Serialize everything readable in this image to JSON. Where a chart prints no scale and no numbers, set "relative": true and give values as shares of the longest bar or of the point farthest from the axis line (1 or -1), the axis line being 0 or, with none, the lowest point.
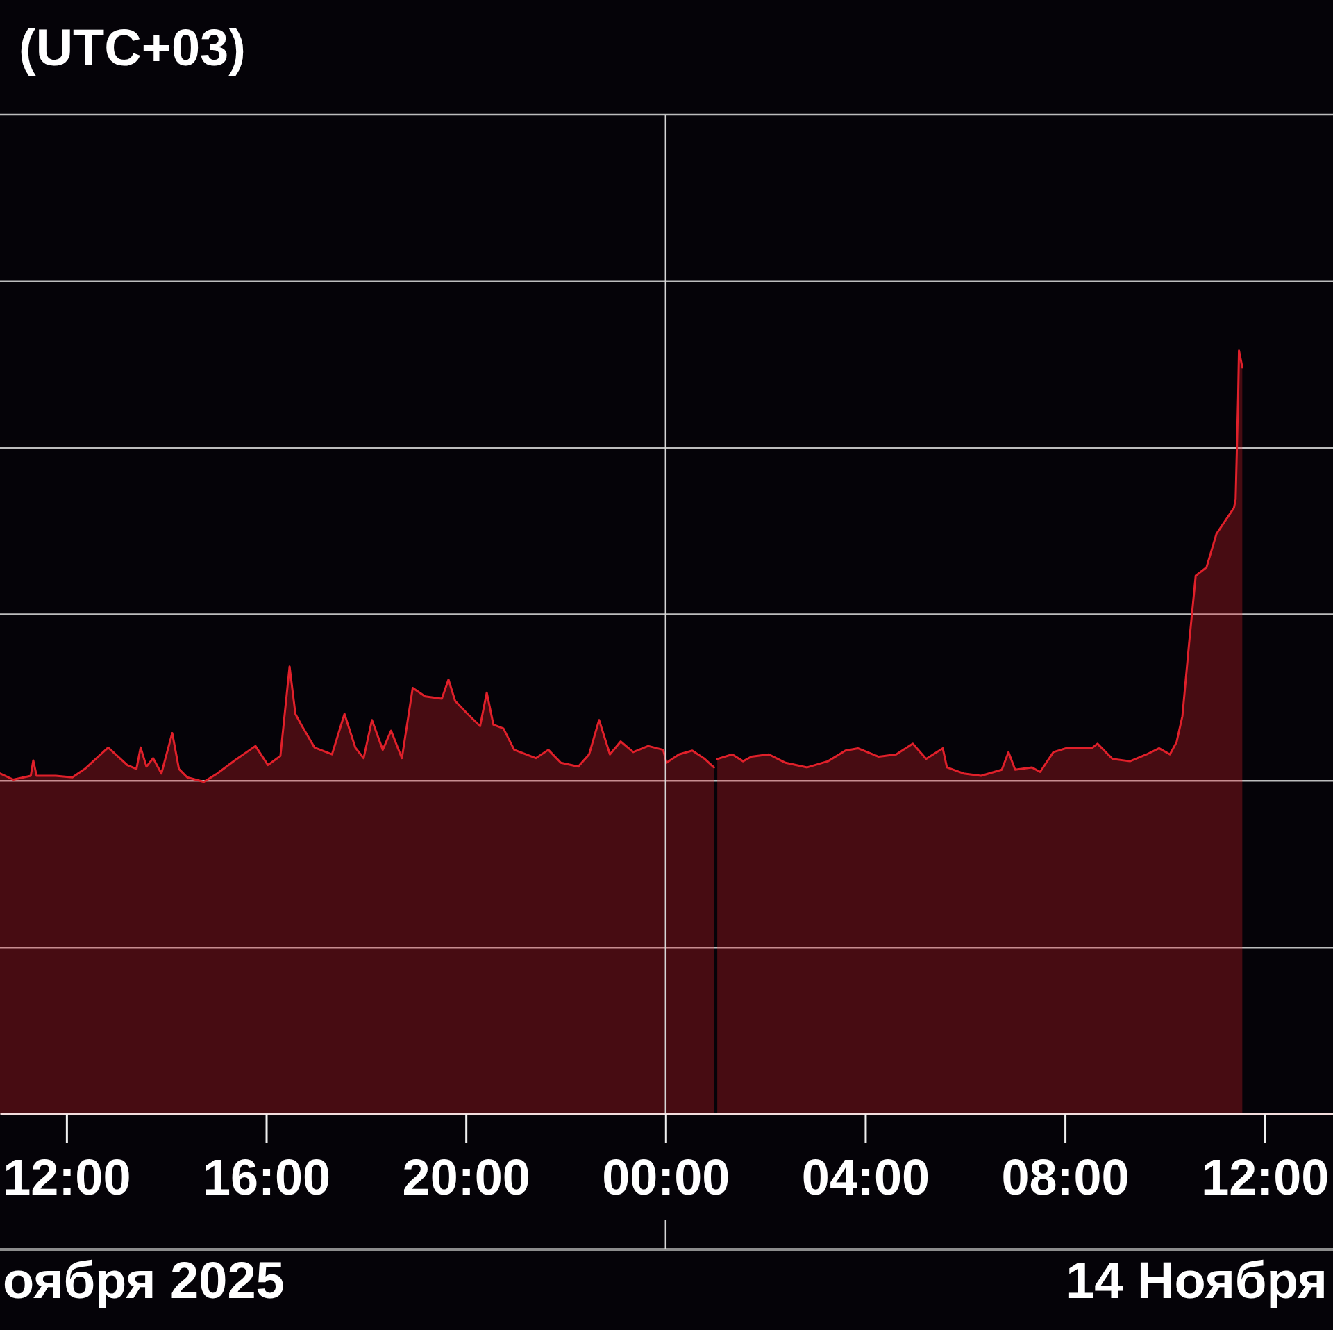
{
  "chart_data": {
    "type": "area",
    "title": "(UTC+03)",
    "relative": true,
    "x": [
      "2025-11-13T10:40",
      "2025-11-13T10:56",
      "2025-11-13T11:17",
      "2025-11-13T11:20",
      "2025-11-13T11:24",
      "2025-11-13T11:47",
      "2025-11-13T12:07",
      "2025-11-13T12:22",
      "2025-11-13T12:50",
      "2025-11-13T13:13",
      "2025-11-13T13:24",
      "2025-11-13T13:29",
      "2025-11-13T13:36",
      "2025-11-13T13:44",
      "2025-11-13T13:54",
      "2025-11-13T14:07",
      "2025-11-13T14:15",
      "2025-11-13T14:25",
      "2025-11-13T14:45",
      "2025-11-13T15:01",
      "2025-11-13T15:22",
      "2025-11-13T15:47",
      "2025-11-13T16:02",
      "2025-11-13T16:17",
      "2025-11-13T16:28",
      "2025-11-13T16:35",
      "2025-11-13T16:43",
      "2025-11-13T16:58",
      "2025-11-13T17:19",
      "2025-11-13T17:34",
      "2025-11-13T17:47",
      "2025-11-13T17:57",
      "2025-11-13T18:07",
      "2025-11-13T18:20",
      "2025-11-13T18:30",
      "2025-11-13T18:43",
      "2025-11-13T18:56",
      "2025-11-13T19:11",
      "2025-11-13T19:31",
      "2025-11-13T19:39",
      "2025-11-13T19:47",
      "2025-11-13T20:02",
      "2025-11-13T20:17",
      "2025-11-13T20:25",
      "2025-11-13T20:33",
      "2025-11-13T20:45",
      "2025-11-13T20:58",
      "2025-11-13T21:24",
      "2025-11-13T21:39",
      "2025-11-13T21:54",
      "2025-11-13T22:15",
      "2025-11-13T22:28",
      "2025-11-13T22:40",
      "2025-11-13T22:53",
      "2025-11-13T23:06",
      "2025-11-13T23:21",
      "2025-11-13T23:39",
      "2025-11-13T23:57",
      "2025-11-14T00:01",
      "2025-11-14T00:16",
      "2025-11-14T00:32",
      "2025-11-14T00:47",
      "2025-11-14T00:58",
      "2025-11-14T01:00",
      "2025-11-14T01:02",
      "2025-11-14T01:20",
      "2025-11-14T01:33",
      "2025-11-14T01:43",
      "2025-11-14T02:04",
      "2025-11-14T02:24",
      "2025-11-14T02:50",
      "2025-11-14T03:15",
      "2025-11-14T03:36",
      "2025-11-14T03:51",
      "2025-11-14T04:16",
      "2025-11-14T04:37",
      "2025-11-14T04:57",
      "2025-11-14T05:13",
      "2025-11-14T05:33",
      "2025-11-14T05:38",
      "2025-11-14T05:58",
      "2025-11-14T06:19",
      "2025-11-14T06:44",
      "2025-11-14T06:52",
      "2025-11-14T07:00",
      "2025-11-14T07:20",
      "2025-11-14T07:30",
      "2025-11-14T07:46",
      "2025-11-14T08:01",
      "2025-11-14T08:32",
      "2025-11-14T08:39",
      "2025-11-14T08:57",
      "2025-11-14T09:18",
      "2025-11-14T09:38",
      "2025-11-14T09:53",
      "2025-11-14T10:06",
      "2025-11-14T10:14",
      "2025-11-14T10:21",
      "2025-11-14T10:29",
      "2025-11-14T10:37",
      "2025-11-14T10:50",
      "2025-11-14T11:02",
      "2025-11-14T11:23",
      "2025-11-14T11:25",
      "2025-11-14T11:28",
      "2025-11-14T11:29",
      "2025-11-14T11:33"
    ],
    "series": [
      {
        "color": "#e0202a",
        "values": [
          0.446,
          0.438,
          0.443,
          0.463,
          0.443,
          0.443,
          0.441,
          0.452,
          0.48,
          0.457,
          0.452,
          0.48,
          0.455,
          0.466,
          0.446,
          0.499,
          0.452,
          0.441,
          0.435,
          0.446,
          0.463,
          0.482,
          0.457,
          0.469,
          0.586,
          0.524,
          0.508,
          0.48,
          0.471,
          0.524,
          0.48,
          0.466,
          0.516,
          0.477,
          0.502,
          0.466,
          0.558,
          0.547,
          0.544,
          0.569,
          0.541,
          0.524,
          0.508,
          0.552,
          0.51,
          0.505,
          0.477,
          0.466,
          0.477,
          0.46,
          0.455,
          0.471,
          0.516,
          0.471,
          0.488,
          0.474,
          0.482,
          0.477,
          0.46,
          0.471,
          0.476,
          0.465,
          0.454,
          null,
          0.465,
          0.471,
          0.462,
          0.468,
          0.471,
          0.46,
          0.454,
          0.462,
          0.476,
          0.479,
          0.468,
          0.471,
          0.485,
          0.465,
          0.479,
          0.454,
          0.446,
          0.443,
          0.451,
          0.474,
          0.451,
          0.454,
          0.448,
          0.474,
          0.479,
          0.479,
          0.485,
          0.465,
          0.462,
          0.471,
          0.479,
          0.471,
          0.487,
          0.521,
          0.616,
          0.705,
          0.716,
          0.76,
          0.794,
          0.805,
          0.939,
          1,
          0.978
        ]
      }
    ],
    "xlim": [
      "2025-11-13T10:40",
      "2025-11-14T13:22"
    ],
    "xticks": [
      {
        "value": "2025-11-13T12:00",
        "label": "12:00"
      },
      {
        "value": "2025-11-13T16:00",
        "label": "16:00"
      },
      {
        "value": "2025-11-13T20:00",
        "label": "20:00"
      },
      {
        "value": "2025-11-14T00:00",
        "label": "00:00"
      },
      {
        "value": "2025-11-14T04:00",
        "label": "04:00"
      },
      {
        "value": "2025-11-14T08:00",
        "label": "08:00"
      },
      {
        "value": "2025-11-14T12:00",
        "label": "12:00"
      }
    ],
    "grid": "y",
    "ref_lines": [
      {
        "axis": "x",
        "value": "2025-11-14T00:00",
        "color": "#d6d6d6"
      }
    ],
    "annotations": [
      "оября 2025",
      "14 Ноября"
    ]
  }
}
